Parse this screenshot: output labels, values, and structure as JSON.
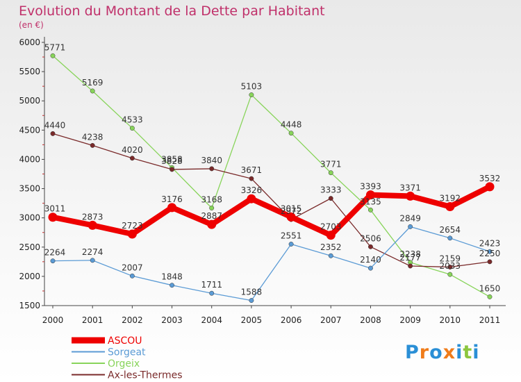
{
  "chart_data": {
    "type": "line",
    "title": "Evolution du Montant de la Dette par Habitant",
    "subtitle": "(en €)",
    "ylim": [
      1500,
      6000
    ],
    "yticks": [
      1500,
      2000,
      2500,
      3000,
      3500,
      4000,
      4500,
      5000,
      5500,
      6000
    ],
    "x": [
      "2000",
      "2001",
      "2002",
      "2003",
      "2004",
      "2005",
      "2006",
      "2007",
      "2008",
      "2009",
      "2010",
      "2011"
    ],
    "grid": false,
    "legend": "bottom-left",
    "series": [
      {
        "name": "ASCOU",
        "color": "#ee0000",
        "values": [
          3011,
          2873,
          2723,
          3176,
          2887,
          3326,
          3015,
          2703,
          3393,
          3371,
          3192,
          3532
        ]
      },
      {
        "name": "Sorgeat",
        "color": "#5b9bd5",
        "values": [
          2264,
          2274,
          2007,
          1848,
          1711,
          1588,
          2551,
          2352,
          2140,
          2849,
          2654,
          2423
        ]
      },
      {
        "name": "Orgeix",
        "color": "#88d45a",
        "values": [
          5771,
          5169,
          4533,
          3858,
          3168,
          5103,
          4448,
          3771,
          3135,
          2238,
          2033,
          1650
        ]
      },
      {
        "name": "Ax-les-Thermes",
        "color": "#7a2a2a",
        "values": [
          4440,
          4238,
          4020,
          3828,
          3840,
          3671,
          2972,
          3333,
          2506,
          2177,
          2159,
          2250
        ]
      }
    ]
  },
  "logo": {
    "text": "Proxiti",
    "letters": [
      "P",
      "r",
      "o",
      "x",
      "i",
      "t",
      "i"
    ],
    "colors": [
      "#2a8fd6",
      "#f07c1a",
      "#2a8fd6",
      "#f07c1a",
      "#2a8fd6",
      "#8cc63f",
      "#2a8fd6"
    ]
  }
}
